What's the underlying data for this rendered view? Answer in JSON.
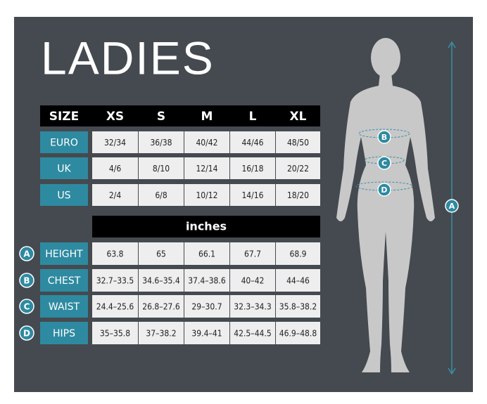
{
  "title": "LADIES",
  "size_table": {
    "header": [
      "SIZE",
      "XS",
      "S",
      "M",
      "L",
      "XL"
    ],
    "rows": [
      {
        "label": "EURO",
        "values": [
          "32/34",
          "36/38",
          "40/42",
          "44/46",
          "48/50"
        ]
      },
      {
        "label": "UK",
        "values": [
          "4/6",
          "8/10",
          "12/14",
          "16/18",
          "20/22"
        ]
      },
      {
        "label": "US",
        "values": [
          "2/4",
          "6/8",
          "10/12",
          "14/16",
          "18/20"
        ]
      }
    ]
  },
  "unit": "inches",
  "measure_table": {
    "rows": [
      {
        "marker": "A",
        "label": "HEIGHT",
        "values": [
          "63.8",
          "65",
          "66.1",
          "67.7",
          "68.9"
        ]
      },
      {
        "marker": "B",
        "label": "CHEST",
        "values": [
          "32.7–33.5",
          "34.6–35.4",
          "37.4–38.6",
          "40–42",
          "44–46"
        ]
      },
      {
        "marker": "C",
        "label": "WAIST",
        "values": [
          "24.4–25.6",
          "26.8–27.6",
          "29–30.7",
          "32.3–34.3",
          "35.8–38.2"
        ]
      },
      {
        "marker": "D",
        "label": "HIPS",
        "values": [
          "35–35.8",
          "37–38.2",
          "39.4–41",
          "42.5–44.5",
          "46.9–48.8"
        ]
      }
    ]
  }
}
